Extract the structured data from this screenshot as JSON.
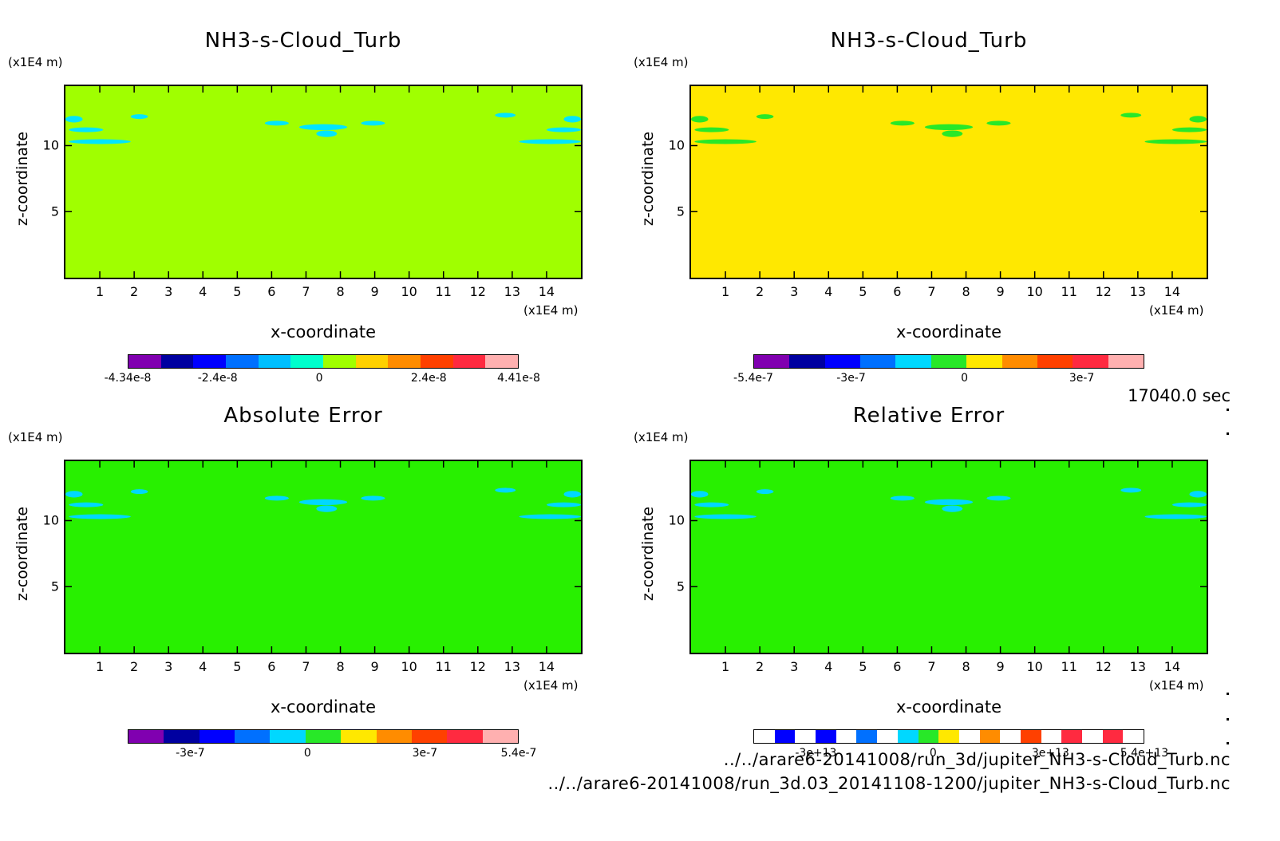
{
  "panels": [
    {
      "title": "NH3-s-Cloud_Turb",
      "unit_y": "(x1E4 m)",
      "unit_x": "(x1E4 m)",
      "ylabel": "z-coordinate",
      "xlabel": "x-coordinate",
      "background": "#a0ff00",
      "feature_color": "#00e5ff",
      "colorbar": {
        "colors": [
          "#8000b0",
          "#0000a0",
          "#0000ff",
          "#0070ff",
          "#00bfff",
          "#00ffcc",
          "#a0ff00",
          "#ffd000",
          "#ff8c00",
          "#ff4000",
          "#ff2a40",
          "#ffb0b0"
        ],
        "labels": [
          "-4.34e-8",
          "-2.4e-8",
          "0",
          "2.4e-8",
          "4.41e-8"
        ]
      }
    },
    {
      "title": "NH3-s-Cloud_Turb",
      "unit_y": "(x1E4 m)",
      "unit_x": "(x1E4 m)",
      "ylabel": "z-coordinate",
      "xlabel": "x-coordinate",
      "background": "#ffe800",
      "feature_color": "#28e828",
      "colorbar": {
        "colors": [
          "#8000b0",
          "#0000a0",
          "#0000ff",
          "#0070ff",
          "#00d8ff",
          "#28e828",
          "#ffe800",
          "#ff8c00",
          "#ff4000",
          "#ff2a40",
          "#ffb0b0"
        ],
        "labels": [
          "-5.4e-7",
          "-3e-7",
          "0",
          "3e-7"
        ]
      }
    },
    {
      "title": "Absolute Error",
      "unit_y": "(x1E4 m)",
      "unit_x": "(x1E4 m)",
      "ylabel": "z-coordinate",
      "xlabel": "x-coordinate",
      "background": "#28f000",
      "feature_color": "#00d8ff",
      "colorbar": {
        "colors": [
          "#8000b0",
          "#0000a0",
          "#0000ff",
          "#0070ff",
          "#00d8ff",
          "#28e828",
          "#ffe800",
          "#ff8c00",
          "#ff4000",
          "#ff2a40",
          "#ffb0b0"
        ],
        "labels": [
          "-3e-7",
          "0",
          "3e-7",
          "5.4e-7"
        ]
      }
    },
    {
      "title": "Relative Error",
      "unit_y": "(x1E4 m)",
      "unit_x": "(x1E4 m)",
      "ylabel": "z-coordinate",
      "xlabel": "x-coordinate",
      "background": "#28f000",
      "feature_color": "#00d8ff",
      "colorbar": {
        "colors": [
          "#ffffff",
          "#0000ff",
          "#ffffff",
          "#0000ff",
          "#ffffff",
          "#0070ff",
          "#ffffff",
          "#00d8ff",
          "#28e828",
          "#ffe800",
          "#ffffff",
          "#ff8c00",
          "#ffffff",
          "#ff4000",
          "#ffffff",
          "#ff2a40",
          "#ffffff",
          "#ff2a40",
          "#ffffff"
        ],
        "labels": [
          "-3e+13",
          "0",
          "3e+13",
          "5.4e+13"
        ]
      }
    }
  ],
  "x_ticks": [
    "1",
    "2",
    "3",
    "4",
    "5",
    "6",
    "7",
    "8",
    "9",
    "10",
    "11",
    "12",
    "13",
    "14"
  ],
  "y_ticks": [
    "5",
    "10"
  ],
  "time_label": "17040.0 sec",
  "file_paths": [
    "../../arare6-20141008/run_3d/jupiter_NH3-s-Cloud_Turb.nc",
    "../../arare6-20141008/run_3d.03_20141108-1200/jupiter_NH3-s-Cloud_Turb.nc"
  ],
  "chart_data": [
    {
      "type": "heatmap",
      "title": "NH3-s-Cloud_Turb",
      "xlabel": "x-coordinate",
      "ylabel": "z-coordinate",
      "xlim": [
        0,
        15
      ],
      "ylim": [
        0,
        14.5
      ],
      "colorbar_ticks": [
        "-4.34e-8",
        "-2.4e-8",
        "0",
        "2.4e-8",
        "4.41e-8"
      ]
    },
    {
      "type": "heatmap",
      "title": "NH3-s-Cloud_Turb",
      "xlabel": "x-coordinate",
      "ylabel": "z-coordinate",
      "xlim": [
        0,
        15
      ],
      "ylim": [
        0,
        14.5
      ],
      "colorbar_ticks": [
        "-5.4e-7",
        "-3e-7",
        "0",
        "3e-7"
      ]
    },
    {
      "type": "heatmap",
      "title": "Absolute Error",
      "xlabel": "x-coordinate",
      "ylabel": "z-coordinate",
      "xlim": [
        0,
        15
      ],
      "ylim": [
        0,
        14.5
      ],
      "colorbar_ticks": [
        "-3e-7",
        "0",
        "3e-7",
        "5.4e-7"
      ]
    },
    {
      "type": "heatmap",
      "title": "Relative Error",
      "xlabel": "x-coordinate",
      "ylabel": "z-coordinate",
      "xlim": [
        0,
        15
      ],
      "ylim": [
        0,
        14.5
      ],
      "colorbar_ticks": [
        "-3e+13",
        "0",
        "3e+13",
        "5.4e+13"
      ]
    }
  ]
}
